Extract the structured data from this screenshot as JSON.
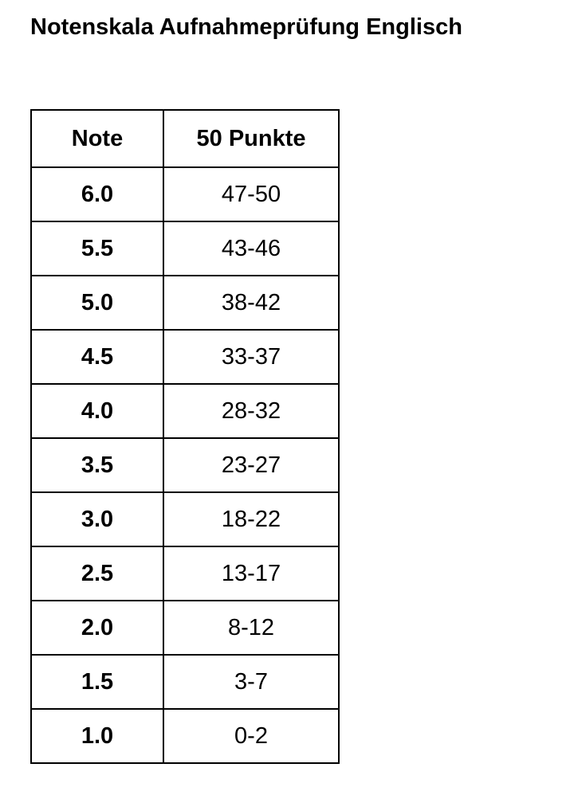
{
  "title": "Notenskala Aufnahmeprüfung Englisch",
  "table": {
    "headers": [
      "Note",
      "50 Punkte"
    ],
    "rows": [
      [
        "6.0",
        "47-50"
      ],
      [
        "5.5",
        "43-46"
      ],
      [
        "5.0",
        "38-42"
      ],
      [
        "4.5",
        "33-37"
      ],
      [
        "4.0",
        "28-32"
      ],
      [
        "3.5",
        "23-27"
      ],
      [
        "3.0",
        "18-22"
      ],
      [
        "2.5",
        "13-17"
      ],
      [
        "2.0",
        "8-12"
      ],
      [
        "1.5",
        "3-7"
      ],
      [
        "1.0",
        "0-2"
      ]
    ]
  }
}
